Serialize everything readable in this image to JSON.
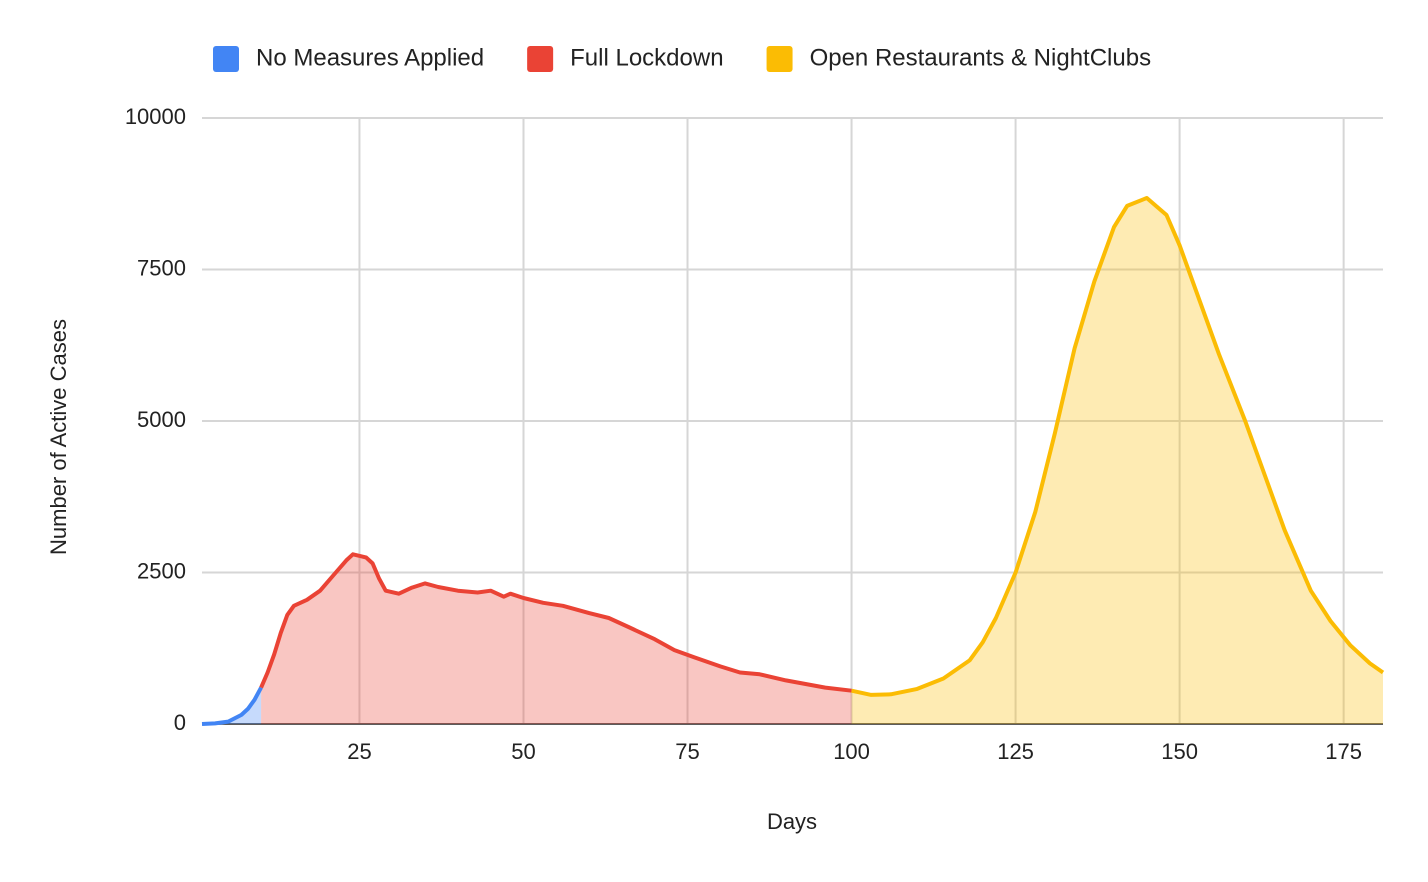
{
  "chart_data": {
    "type": "area",
    "x_label": "Days",
    "y_label": "Number of Active Cases",
    "xlim": [
      1,
      181
    ],
    "ylim": [
      0,
      10000
    ],
    "xticks": [
      25,
      50,
      75,
      100,
      125,
      150,
      175
    ],
    "yticks": [
      0,
      2500,
      5000,
      7500,
      10000
    ],
    "grid": true,
    "legend": "top",
    "series": [
      {
        "name": "No Measures Applied",
        "color": "#4285f4",
        "x": [
          1,
          3,
          5,
          7,
          8,
          9,
          10
        ],
        "values": [
          0,
          10,
          40,
          150,
          250,
          400,
          600
        ]
      },
      {
        "name": "Full Lockdown",
        "color": "#ea4335",
        "x": [
          10,
          11,
          12,
          13,
          14,
          15,
          17,
          19,
          21,
          23,
          24,
          26,
          27,
          28,
          29,
          31,
          33,
          35,
          37,
          40,
          43,
          45,
          47,
          48,
          50,
          53,
          56,
          60,
          63,
          66,
          70,
          73,
          76,
          80,
          83,
          86,
          90,
          93,
          96,
          100
        ],
        "values": [
          600,
          850,
          1150,
          1500,
          1800,
          1950,
          2050,
          2200,
          2450,
          2700,
          2800,
          2750,
          2650,
          2400,
          2200,
          2150,
          2250,
          2320,
          2260,
          2200,
          2170,
          2200,
          2100,
          2150,
          2080,
          2000,
          1950,
          1830,
          1750,
          1600,
          1400,
          1220,
          1100,
          950,
          850,
          820,
          720,
          660,
          600,
          550
        ]
      },
      {
        "name": "Open Restaurants & NightClubs",
        "color": "#fbbc04",
        "x": [
          100,
          103,
          106,
          110,
          114,
          118,
          120,
          122,
          125,
          128,
          131,
          134,
          137,
          140,
          142,
          145,
          148,
          150,
          153,
          156,
          160,
          163,
          166,
          168,
          170,
          173,
          176,
          179,
          181
        ],
        "values": [
          550,
          480,
          490,
          580,
          750,
          1050,
          1350,
          1750,
          2500,
          3500,
          4800,
          6200,
          7300,
          8200,
          8550,
          8680,
          8400,
          7900,
          7000,
          6100,
          5000,
          4100,
          3200,
          2700,
          2200,
          1700,
          1300,
          1000,
          850
        ]
      }
    ]
  }
}
